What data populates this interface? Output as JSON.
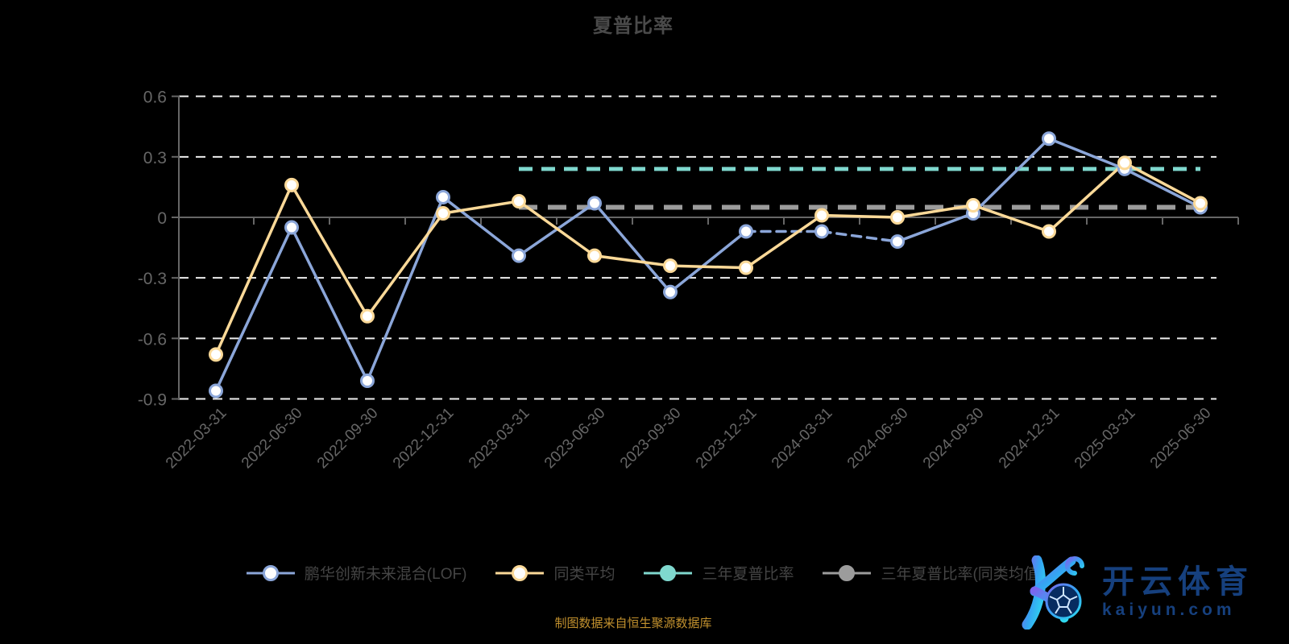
{
  "header": {
    "title": "夏普比率"
  },
  "footer": {
    "source_note": "制图数据来自恒生聚源数据库"
  },
  "watermark": {
    "brand": "开云体育",
    "domain": "kaiyun.com",
    "logo_letter": "K",
    "logo_icon": "soccer-ball"
  },
  "colors": {
    "background": "#000000",
    "title": "#4a4a4a",
    "axis": "#666666",
    "grid": "#ededed",
    "tick_label": "#666666",
    "legend_label": "#454545",
    "source_note": "#c2912e",
    "brand_navy": "#16407e",
    "series_fund": "#8ba6d9",
    "series_peer": "#fbd998",
    "series_3y": "#7fd8ce",
    "series_3y_peer": "#9c9c9c"
  },
  "chart_data": {
    "type": "line",
    "title": "夏普比率",
    "xlabel": "",
    "ylabel": "",
    "ylim": [
      -0.9,
      0.6
    ],
    "yticks": [
      0.6,
      0.3,
      0,
      -0.3,
      -0.6,
      -0.9
    ],
    "grid": "horizontal-dashed",
    "legend_position": "bottom",
    "style": {
      "axis": "#666666",
      "grid": "#ededed",
      "tick_label": "#666666"
    },
    "categories": [
      "2022-03-31",
      "2022-06-30",
      "2022-09-30",
      "2022-12-31",
      "2023-03-31",
      "2023-06-30",
      "2023-09-30",
      "2023-12-31",
      "2024-03-31",
      "2024-06-30",
      "2024-09-30",
      "2024-12-31",
      "2025-03-31",
      "2025-06-30"
    ],
    "series": [
      {
        "name": "鹏华创新未来混合(LOF)",
        "type": "line",
        "color": "#8ba6d9",
        "marker": "open",
        "values": [
          -0.86,
          -0.05,
          -0.81,
          0.1,
          -0.19,
          0.07,
          -0.37,
          -0.07,
          -0.07,
          -0.12,
          0.02,
          0.39,
          0.24,
          0.05
        ],
        "dash_segments": [
          [
            7,
            8
          ],
          [
            8,
            9
          ]
        ]
      },
      {
        "name": "同类平均",
        "type": "line",
        "color": "#fbd998",
        "marker": "open",
        "values": [
          -0.68,
          0.16,
          -0.49,
          0.02,
          0.08,
          -0.19,
          -0.24,
          -0.25,
          0.01,
          0.0,
          0.06,
          -0.07,
          0.27,
          0.07
        ]
      },
      {
        "name": "三年夏普比率",
        "type": "hline-dashed",
        "color": "#7fd8ce",
        "marker": "filled",
        "value": 0.24,
        "start_index": 4,
        "end_index": 13,
        "width": 5,
        "dash": "17 11"
      },
      {
        "name": "三年夏普比率(同类均值)",
        "type": "hline-dashed",
        "color": "#9c9c9c",
        "marker": "filled",
        "value": 0.05,
        "start_index": 4,
        "end_index": 13,
        "width": 6,
        "dash": "23 13"
      }
    ]
  }
}
